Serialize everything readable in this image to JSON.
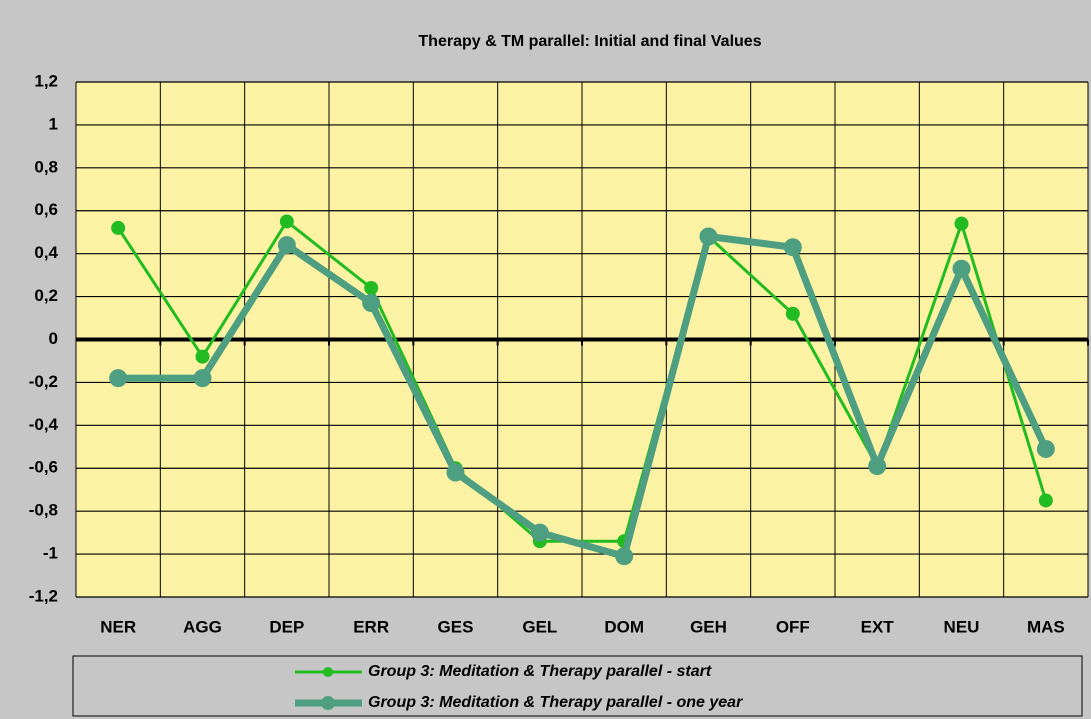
{
  "chart_data": {
    "type": "line",
    "title": "Therapy & TM parallel: Initial and final Values",
    "categories": [
      "NER",
      "AGG",
      "DEP",
      "ERR",
      "GES",
      "GEL",
      "DOM",
      "GEH",
      "OFF",
      "EXT",
      "NEU",
      "MAS"
    ],
    "series": [
      {
        "name": "Group 3: Meditation & Therapy parallel - start",
        "color": "#22bb22",
        "values": [
          0.52,
          -0.08,
          0.55,
          0.24,
          -0.6,
          -0.94,
          -0.94,
          0.48,
          0.12,
          -0.59,
          0.54,
          -0.75
        ]
      },
      {
        "name": "Group 3: Meditation & Therapy parallel - one year",
        "color": "#4e9e82",
        "values": [
          -0.18,
          -0.18,
          0.44,
          0.17,
          -0.62,
          -0.9,
          -1.01,
          0.48,
          0.43,
          -0.59,
          0.33,
          -0.51
        ]
      }
    ],
    "ylim": [
      -1.2,
      1.2
    ],
    "yticks": [
      {
        "value": -1.2,
        "label": "-1,2"
      },
      -1,
      {
        "value": -0.8,
        "label": "-0,8"
      },
      {
        "value": -0.6,
        "label": "-0,6"
      },
      {
        "value": -0.4,
        "label": "-0,4"
      },
      {
        "value": -0.2,
        "label": "-0,2"
      },
      0,
      {
        "value": 0.2,
        "label": "0,2"
      },
      {
        "value": 0.4,
        "label": "0,4"
      },
      {
        "value": 0.6,
        "label": "0,6"
      },
      {
        "value": 0.8,
        "label": "0,8"
      },
      1,
      {
        "value": 1.2,
        "label": "1,2"
      }
    ],
    "grid": true,
    "legend": "bottom"
  }
}
